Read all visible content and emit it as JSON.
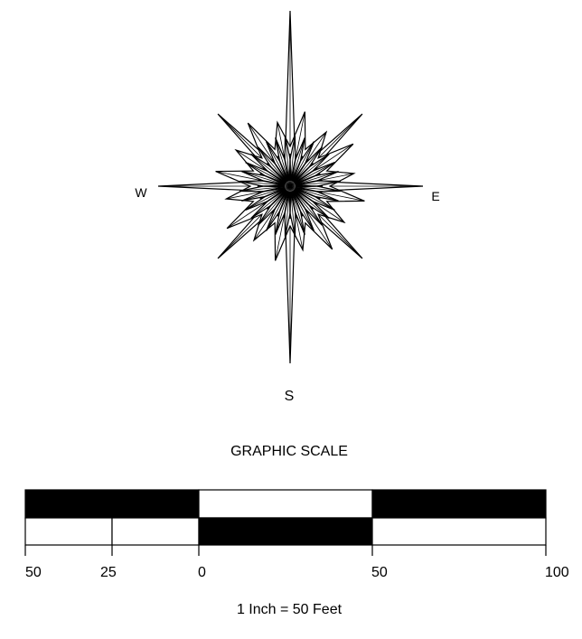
{
  "compass": {
    "west": "W",
    "east": "E",
    "south": "S"
  },
  "scale": {
    "title": "GRAPHIC SCALE",
    "tick_labels": [
      "50",
      "25",
      "0",
      "50",
      "100"
    ],
    "caption": "1 Inch = 50 Feet"
  }
}
